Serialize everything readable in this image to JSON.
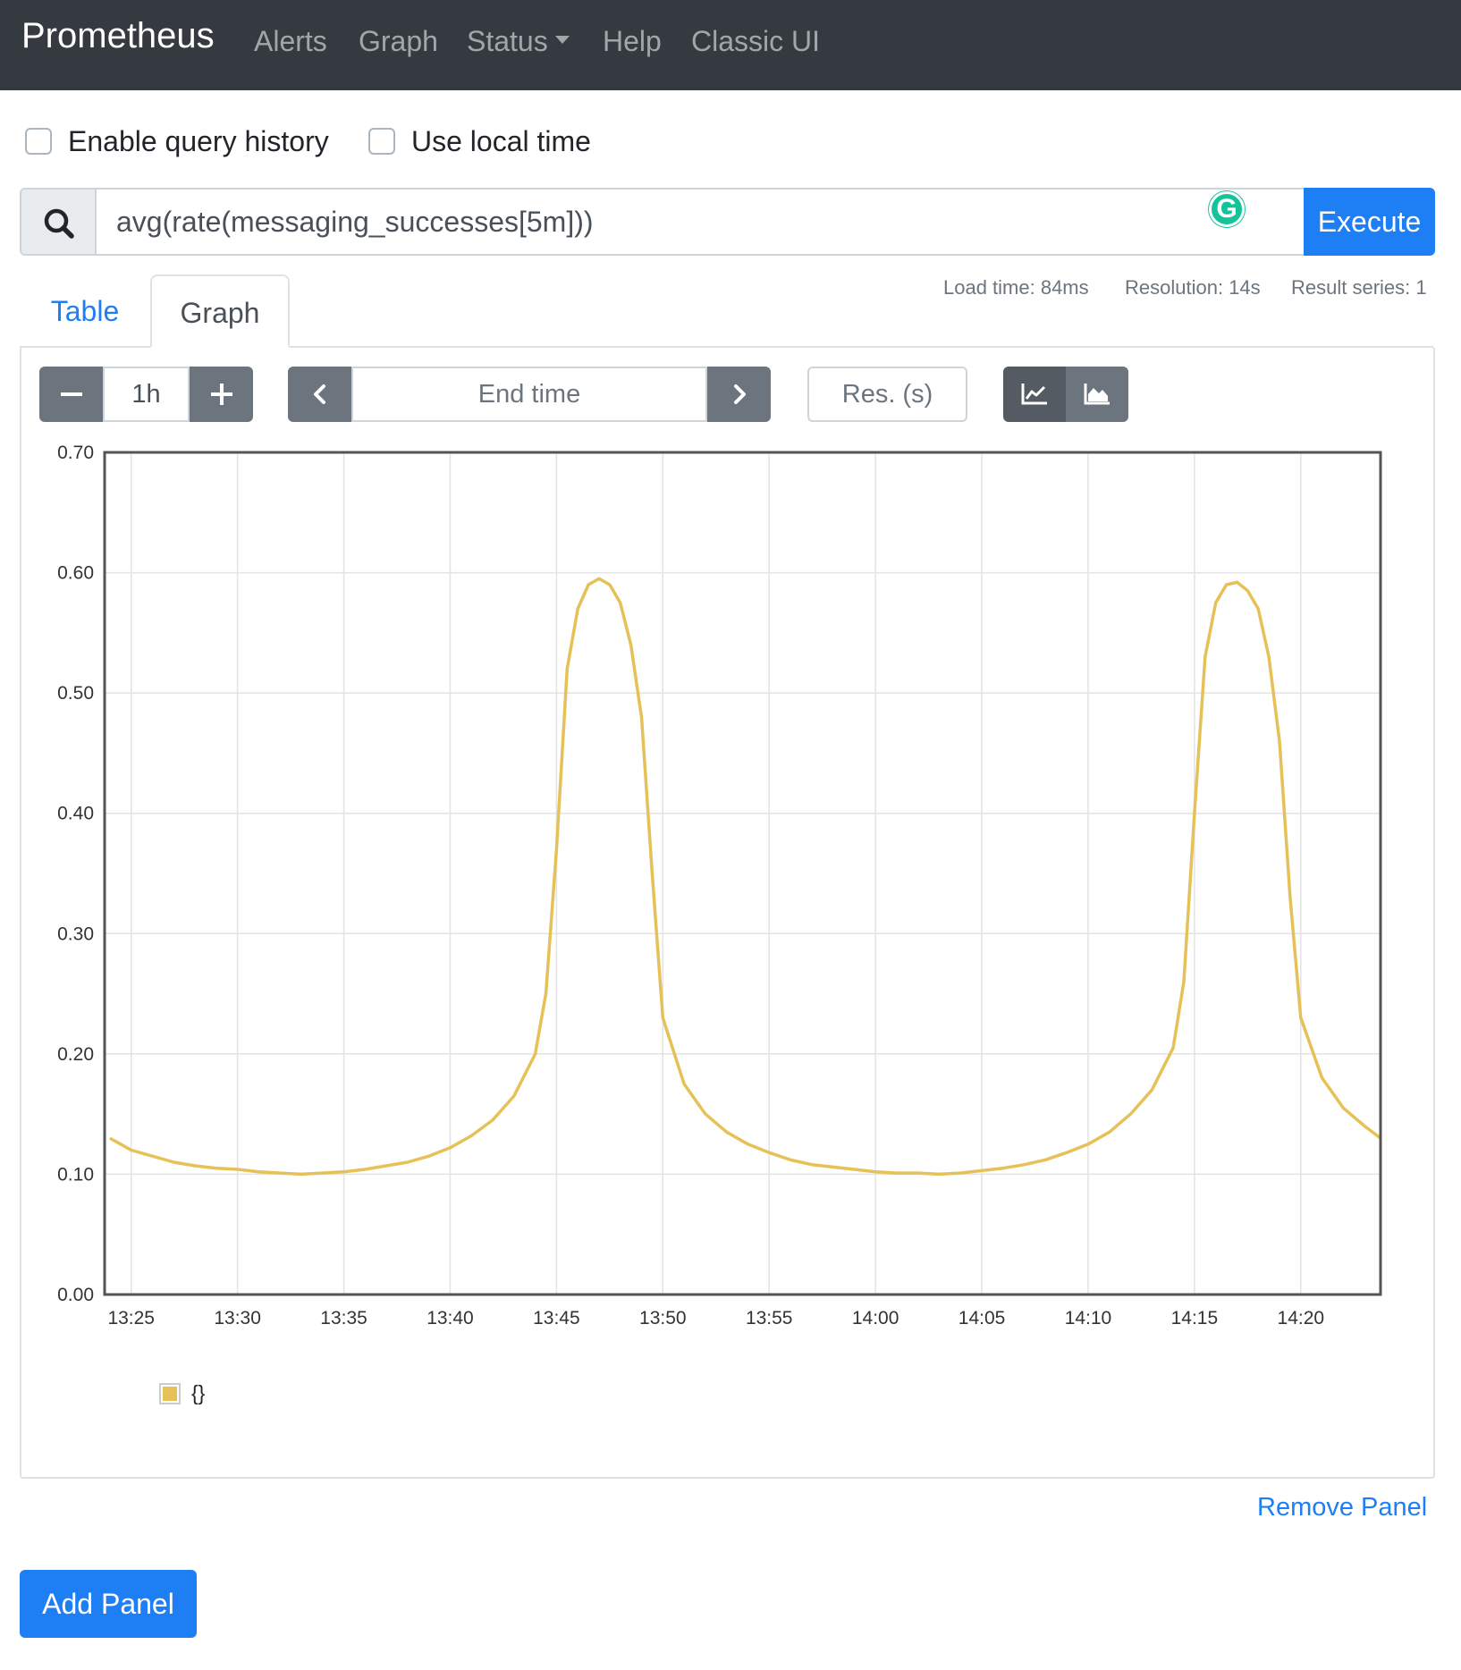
{
  "navbar": {
    "brand": "Prometheus",
    "items": [
      {
        "label": "Alerts"
      },
      {
        "label": "Graph"
      },
      {
        "label": "Status"
      },
      {
        "label": "Help"
      },
      {
        "label": "Classic UI"
      }
    ]
  },
  "options": {
    "query_history": {
      "label": "Enable query history",
      "checked": false
    },
    "local_time": {
      "label": "Use local time",
      "checked": false
    }
  },
  "query": {
    "value": "avg(rate(messaging_successes[5m]))",
    "execute_label": "Execute",
    "search_icon": "search-icon",
    "grammarly_badge": "G"
  },
  "tabs": [
    {
      "label": "Table",
      "active": false
    },
    {
      "label": "Graph",
      "active": true
    }
  ],
  "stats": {
    "load_time": "Load time: 84ms",
    "resolution": "Resolution: 14s",
    "result_series": "Result series: 1"
  },
  "controls": {
    "range_value": "1h",
    "end_time_placeholder": "End time",
    "resolution_placeholder": "Res. (s)",
    "chart_mode": "line"
  },
  "colors": {
    "accent": "#1e7ff5",
    "navbar": "#343a40",
    "series": "#e5c157"
  },
  "chart_data": {
    "type": "line",
    "title": "",
    "xlabel": "",
    "ylabel": "",
    "ylim": [
      0,
      0.7
    ],
    "y_ticks": [
      "0.00",
      "0.10",
      "0.20",
      "0.30",
      "0.40",
      "0.50",
      "0.60",
      "0.70"
    ],
    "x_ticks": [
      "13:25",
      "13:30",
      "13:35",
      "13:40",
      "13:45",
      "13:50",
      "13:55",
      "14:00",
      "14:05",
      "14:10",
      "14:15",
      "14:20"
    ],
    "x_range_minutes": [
      "13:23:45",
      "14:23:45"
    ],
    "grid": true,
    "legend": "bottom-left",
    "series": [
      {
        "name": "{}",
        "x": [
          "13:24",
          "13:25",
          "13:26",
          "13:27",
          "13:28",
          "13:29",
          "13:30",
          "13:31",
          "13:32",
          "13:33",
          "13:34",
          "13:35",
          "13:36",
          "13:37",
          "13:38",
          "13:39",
          "13:40",
          "13:41",
          "13:42",
          "13:43",
          "13:44",
          "13:44:30",
          "13:45",
          "13:45:30",
          "13:46",
          "13:46:30",
          "13:47",
          "13:47:30",
          "13:48",
          "13:48:30",
          "13:49",
          "13:49:30",
          "13:50",
          "13:51",
          "13:52",
          "13:53",
          "13:54",
          "13:55",
          "13:56",
          "13:57",
          "13:58",
          "13:59",
          "14:00",
          "14:01",
          "14:02",
          "14:03",
          "14:04",
          "14:05",
          "14:06",
          "14:07",
          "14:08",
          "14:09",
          "14:10",
          "14:11",
          "14:12",
          "14:13",
          "14:14",
          "14:14:30",
          "14:15",
          "14:15:30",
          "14:16",
          "14:16:30",
          "14:17",
          "14:17:30",
          "14:18",
          "14:18:30",
          "14:19",
          "14:19:30",
          "14:20",
          "14:21",
          "14:22",
          "14:23",
          "14:23:45"
        ],
        "values": [
          0.13,
          0.12,
          0.115,
          0.11,
          0.107,
          0.105,
          0.104,
          0.102,
          0.101,
          0.1,
          0.101,
          0.102,
          0.104,
          0.107,
          0.11,
          0.115,
          0.122,
          0.132,
          0.145,
          0.165,
          0.2,
          0.25,
          0.37,
          0.52,
          0.57,
          0.59,
          0.595,
          0.59,
          0.575,
          0.54,
          0.48,
          0.35,
          0.23,
          0.175,
          0.15,
          0.135,
          0.125,
          0.118,
          0.112,
          0.108,
          0.106,
          0.104,
          0.102,
          0.101,
          0.101,
          0.1,
          0.101,
          0.103,
          0.105,
          0.108,
          0.112,
          0.118,
          0.125,
          0.135,
          0.15,
          0.17,
          0.205,
          0.26,
          0.4,
          0.53,
          0.575,
          0.59,
          0.592,
          0.585,
          0.57,
          0.53,
          0.46,
          0.33,
          0.23,
          0.18,
          0.155,
          0.14,
          0.13
        ]
      }
    ]
  }
}
